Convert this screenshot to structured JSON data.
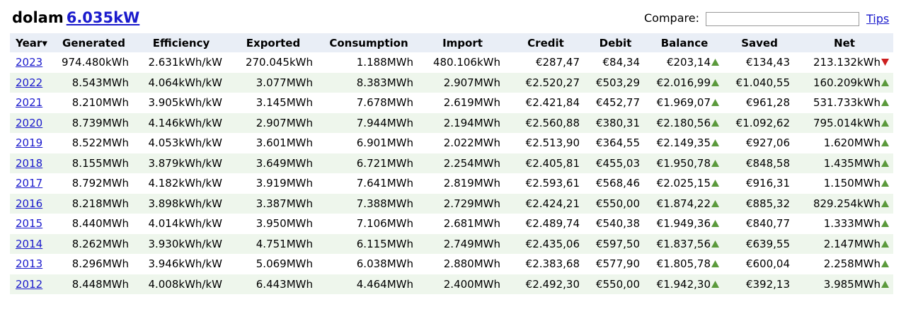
{
  "header": {
    "title": "dolam",
    "size_link": "6.035kW",
    "compare_label": "Compare:",
    "tips_link": "Tips"
  },
  "table": {
    "columns": [
      "Year▾",
      "Generated",
      "Efficiency",
      "Exported",
      "Consumption",
      "Import",
      "Credit",
      "Debit",
      "Balance",
      "Saved",
      "Net"
    ],
    "rows": [
      {
        "year": "2023",
        "values": [
          "974.480kWh",
          "2.631kWh/kW",
          "270.045kWh",
          "1.188MWh",
          "480.106kWh",
          "€287,47",
          "€84,34",
          "€203,14",
          "€134,43",
          "213.132kWh"
        ],
        "balance_arrow": "up",
        "net_arrow": "down"
      },
      {
        "year": "2022",
        "values": [
          "8.543MWh",
          "4.064kWh/kW",
          "3.077MWh",
          "8.383MWh",
          "2.907MWh",
          "€2.520,27",
          "€503,29",
          "€2.016,99",
          "€1.040,55",
          "160.209kWh"
        ],
        "balance_arrow": "up",
        "net_arrow": "up"
      },
      {
        "year": "2021",
        "values": [
          "8.210MWh",
          "3.905kWh/kW",
          "3.145MWh",
          "7.678MWh",
          "2.619MWh",
          "€2.421,84",
          "€452,77",
          "€1.969,07",
          "€961,28",
          "531.733kWh"
        ],
        "balance_arrow": "up",
        "net_arrow": "up"
      },
      {
        "year": "2020",
        "values": [
          "8.739MWh",
          "4.146kWh/kW",
          "2.907MWh",
          "7.944MWh",
          "2.194MWh",
          "€2.560,88",
          "€380,31",
          "€2.180,56",
          "€1.092,62",
          "795.014kWh"
        ],
        "balance_arrow": "up",
        "net_arrow": "up"
      },
      {
        "year": "2019",
        "values": [
          "8.522MWh",
          "4.053kWh/kW",
          "3.601MWh",
          "6.901MWh",
          "2.022MWh",
          "€2.513,90",
          "€364,55",
          "€2.149,35",
          "€927,06",
          "1.620MWh"
        ],
        "balance_arrow": "up",
        "net_arrow": "up"
      },
      {
        "year": "2018",
        "values": [
          "8.155MWh",
          "3.879kWh/kW",
          "3.649MWh",
          "6.721MWh",
          "2.254MWh",
          "€2.405,81",
          "€455,03",
          "€1.950,78",
          "€848,58",
          "1.435MWh"
        ],
        "balance_arrow": "up",
        "net_arrow": "up"
      },
      {
        "year": "2017",
        "values": [
          "8.792MWh",
          "4.182kWh/kW",
          "3.919MWh",
          "7.641MWh",
          "2.819MWh",
          "€2.593,61",
          "€568,46",
          "€2.025,15",
          "€916,31",
          "1.150MWh"
        ],
        "balance_arrow": "up",
        "net_arrow": "up"
      },
      {
        "year": "2016",
        "values": [
          "8.218MWh",
          "3.898kWh/kW",
          "3.387MWh",
          "7.388MWh",
          "2.729MWh",
          "€2.424,21",
          "€550,00",
          "€1.874,22",
          "€885,32",
          "829.254kWh"
        ],
        "balance_arrow": "up",
        "net_arrow": "up"
      },
      {
        "year": "2015",
        "values": [
          "8.440MWh",
          "4.014kWh/kW",
          "3.950MWh",
          "7.106MWh",
          "2.681MWh",
          "€2.489,74",
          "€540,38",
          "€1.949,36",
          "€840,77",
          "1.333MWh"
        ],
        "balance_arrow": "up",
        "net_arrow": "up"
      },
      {
        "year": "2014",
        "values": [
          "8.262MWh",
          "3.930kWh/kW",
          "4.751MWh",
          "6.115MWh",
          "2.749MWh",
          "€2.435,06",
          "€597,50",
          "€1.837,56",
          "€639,55",
          "2.147MWh"
        ],
        "balance_arrow": "up",
        "net_arrow": "up"
      },
      {
        "year": "2013",
        "values": [
          "8.296MWh",
          "3.946kWh/kW",
          "5.069MWh",
          "6.038MWh",
          "2.880MWh",
          "€2.383,68",
          "€577,90",
          "€1.805,78",
          "€600,04",
          "2.258MWh"
        ],
        "balance_arrow": "up",
        "net_arrow": "up"
      },
      {
        "year": "2012",
        "values": [
          "8.448MWh",
          "4.008kWh/kW",
          "6.443MWh",
          "4.464MWh",
          "2.400MWh",
          "€2.492,30",
          "€550,00",
          "€1.942,30",
          "€392,13",
          "3.985MWh"
        ],
        "balance_arrow": "up",
        "net_arrow": "up"
      }
    ]
  }
}
